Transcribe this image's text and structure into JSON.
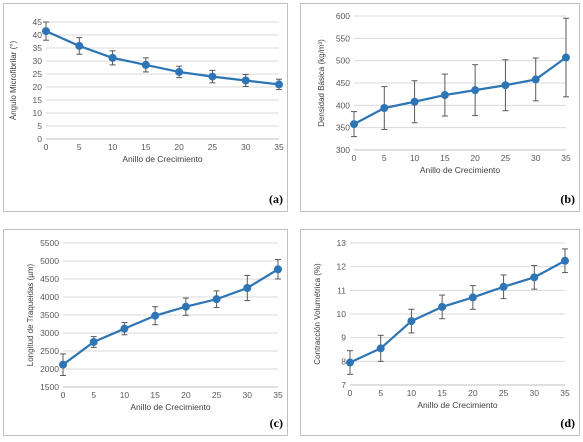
{
  "chart_data": [
    {
      "type": "line",
      "panel_label": "(a)",
      "xlabel": "Anillo de Crecimiento",
      "ylabel": "Ángulo Microfibrilar (°)",
      "xlim": [
        0,
        35
      ],
      "ylim": [
        0,
        45
      ],
      "xticks": [
        0,
        5,
        10,
        15,
        20,
        25,
        30,
        35
      ],
      "yticks": [
        0,
        5,
        10,
        15,
        20,
        25,
        30,
        35,
        40,
        45
      ],
      "grid": "horizontal",
      "color": "#2e75b6",
      "x": [
        0,
        5,
        10,
        15,
        20,
        25,
        30,
        35
      ],
      "series": [
        {
          "values": [
            41.5,
            35.8,
            31.2,
            28.5,
            25.8,
            24.0,
            22.5,
            21.0
          ],
          "error": [
            3.5,
            3.2,
            2.7,
            2.7,
            2.2,
            2.4,
            2.3,
            2.0
          ]
        }
      ]
    },
    {
      "type": "line",
      "panel_label": "(b)",
      "xlabel": "Anillo de Crecimiento",
      "ylabel": "Densidad Básica (kg/m³)",
      "xlim": [
        0,
        35
      ],
      "ylim": [
        300,
        600
      ],
      "xticks": [
        0,
        5,
        10,
        15,
        20,
        25,
        30,
        35
      ],
      "yticks": [
        300,
        350,
        400,
        450,
        500,
        550,
        600
      ],
      "grid": "horizontal",
      "color": "#2e75b6",
      "x": [
        0,
        5,
        10,
        15,
        20,
        25,
        30,
        35
      ],
      "series": [
        {
          "values": [
            358,
            394,
            408,
            423,
            434,
            445,
            458,
            507
          ],
          "error": [
            28,
            48,
            47,
            47,
            57,
            57,
            48,
            88
          ]
        }
      ]
    },
    {
      "type": "line",
      "panel_label": "(c)",
      "xlabel": "Anillo de Crecimiento",
      "ylabel": "Longitud de Traqueidas (µm)",
      "xlim": [
        0,
        35
      ],
      "ylim": [
        1500,
        5500
      ],
      "xticks": [
        0,
        5,
        10,
        15,
        20,
        25,
        30,
        35
      ],
      "yticks": [
        1500,
        2000,
        2500,
        3000,
        3500,
        4000,
        4500,
        5000,
        5500
      ],
      "grid": "horizontal",
      "color": "#2e75b6",
      "x": [
        0,
        5,
        10,
        15,
        20,
        25,
        30,
        35
      ],
      "series": [
        {
          "values": [
            2120,
            2750,
            3120,
            3480,
            3730,
            3940,
            4250,
            4770
          ],
          "error": [
            300,
            150,
            170,
            250,
            240,
            230,
            350,
            270
          ]
        }
      ]
    },
    {
      "type": "line",
      "panel_label": "(d)",
      "xlabel": "Anillo de Crecimiento",
      "ylabel": "Contracción Volumétrica (%)",
      "xlim": [
        0,
        35
      ],
      "ylim": [
        7,
        13
      ],
      "xticks": [
        0,
        5,
        10,
        15,
        20,
        25,
        30,
        35
      ],
      "yticks": [
        7,
        8,
        9,
        10,
        11,
        12,
        13
      ],
      "grid": "horizontal",
      "color": "#2e75b6",
      "x": [
        0,
        5,
        10,
        15,
        20,
        25,
        30,
        35
      ],
      "series": [
        {
          "values": [
            7.95,
            8.55,
            9.7,
            10.3,
            10.7,
            11.15,
            11.55,
            12.25
          ],
          "error": [
            0.5,
            0.55,
            0.5,
            0.5,
            0.5,
            0.5,
            0.5,
            0.5
          ]
        }
      ]
    }
  ]
}
